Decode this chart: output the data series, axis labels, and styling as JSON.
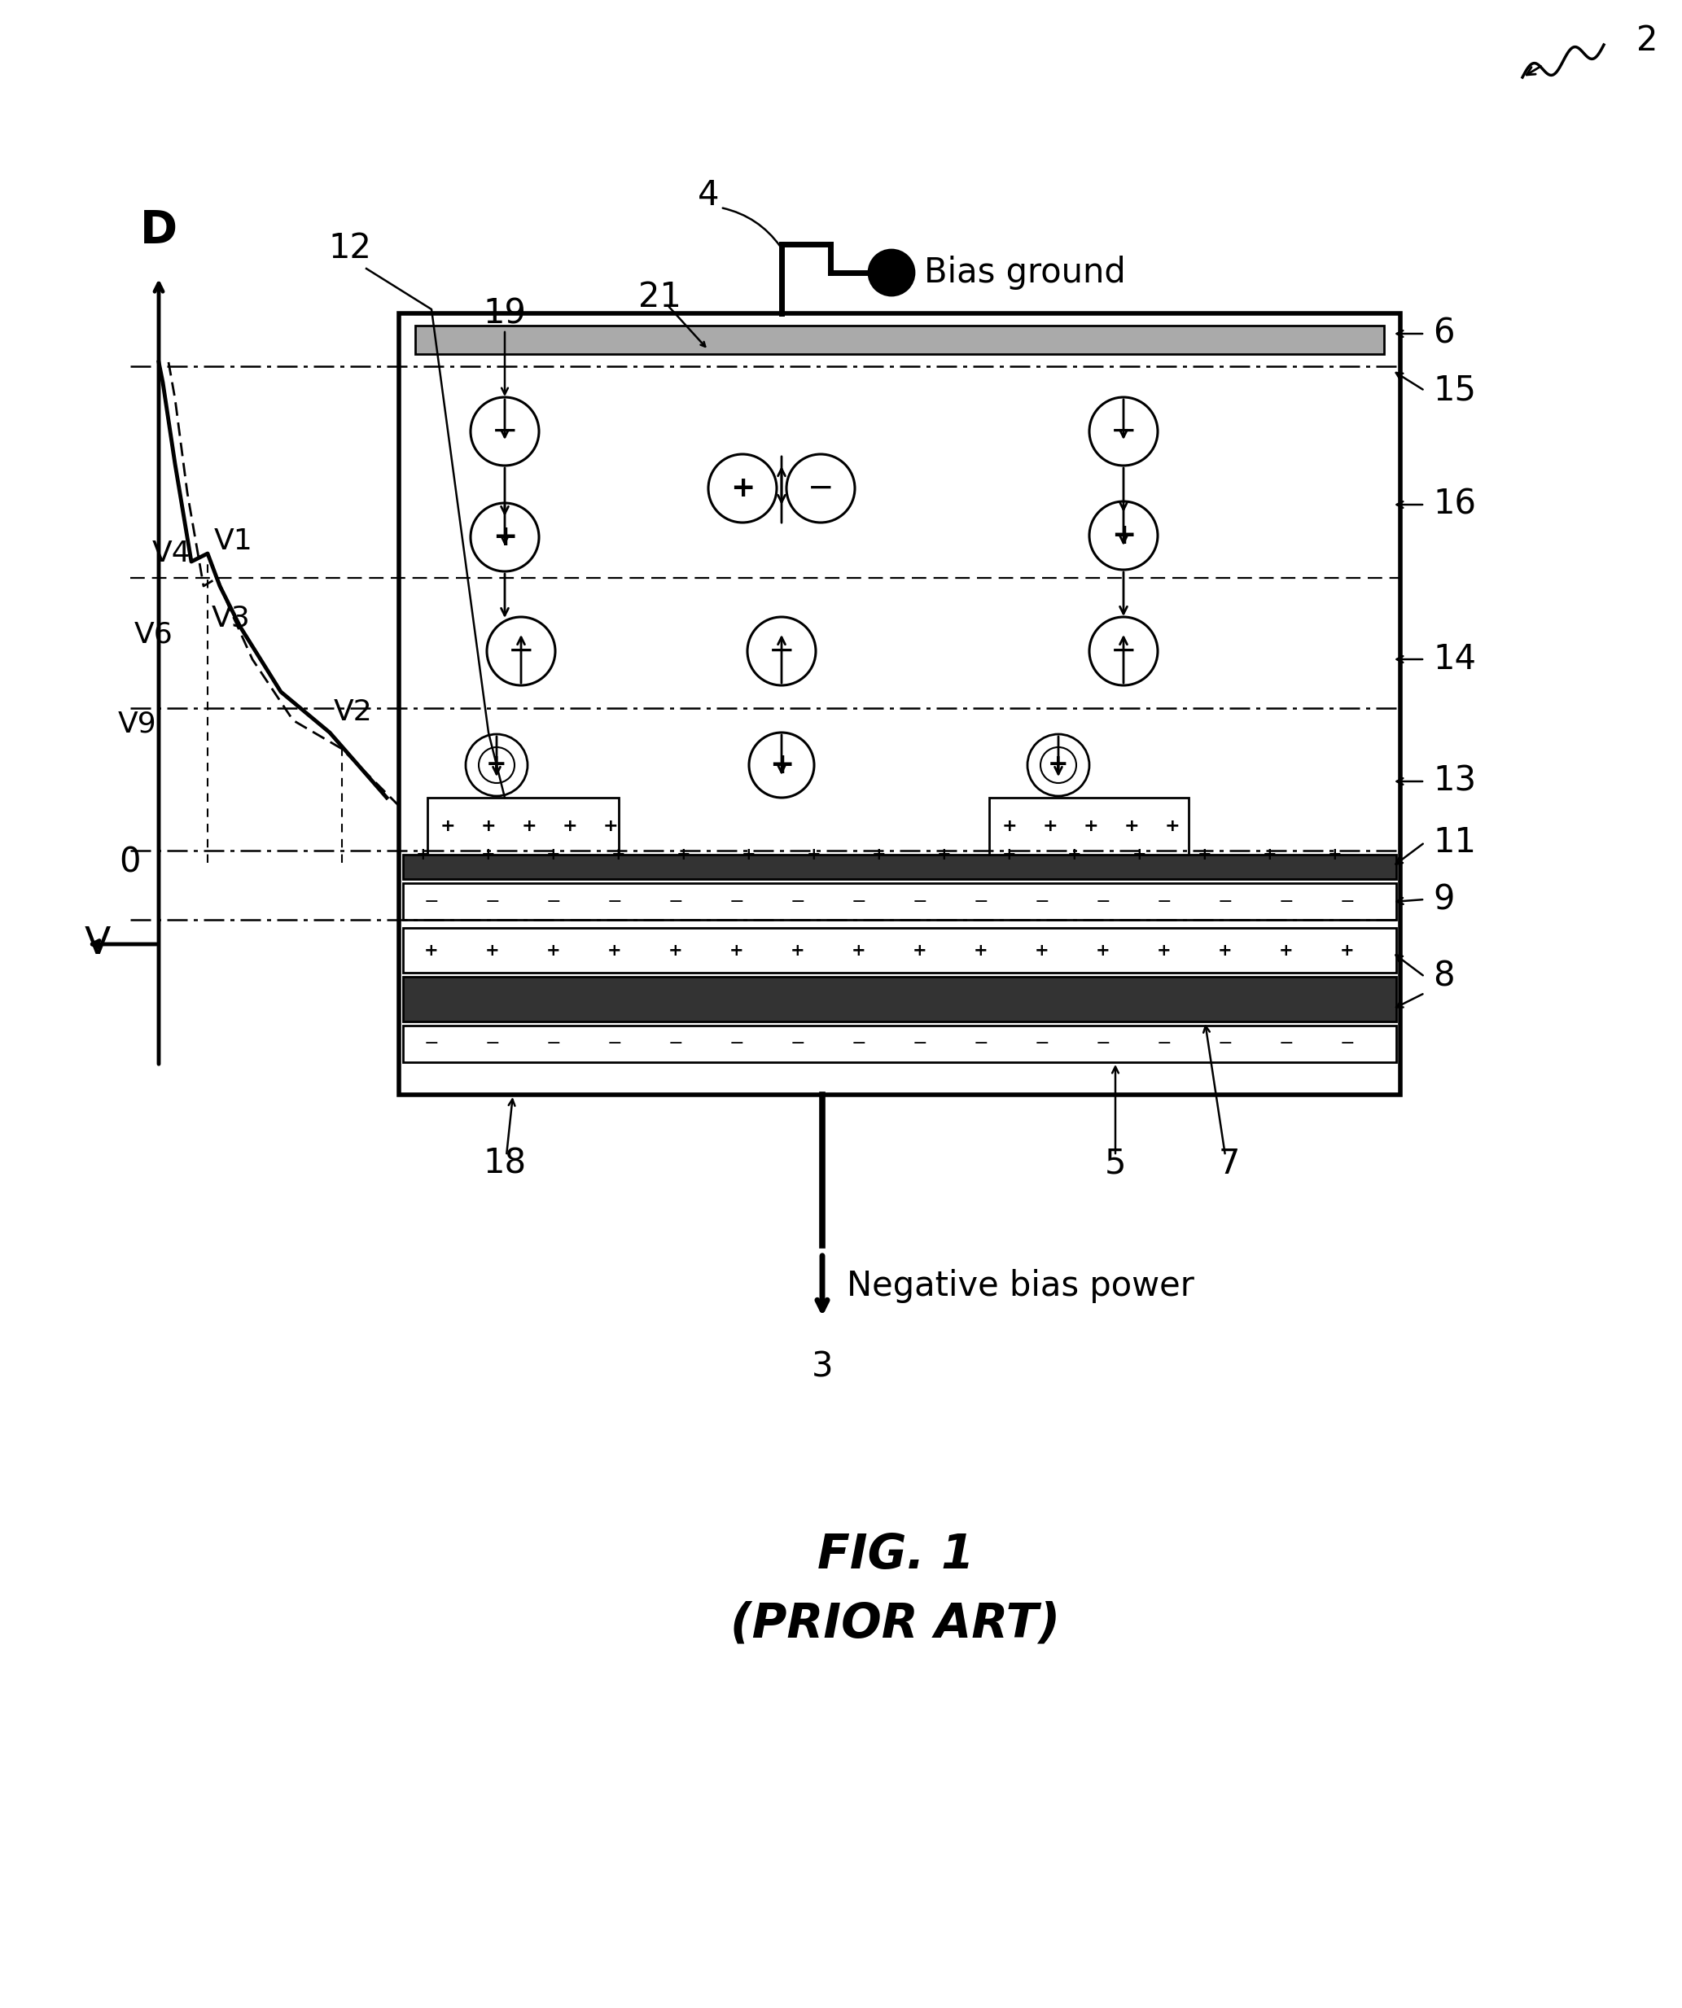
{
  "fig_label": "FIG. 1",
  "fig_sublabel": "(PRIOR ART)",
  "bg_color": "#ffffff",
  "label_bias_ground": "Bias ground",
  "label_neg_bias": "Negative bias power",
  "label_D": "D",
  "label_V": "V",
  "label_0": "0"
}
